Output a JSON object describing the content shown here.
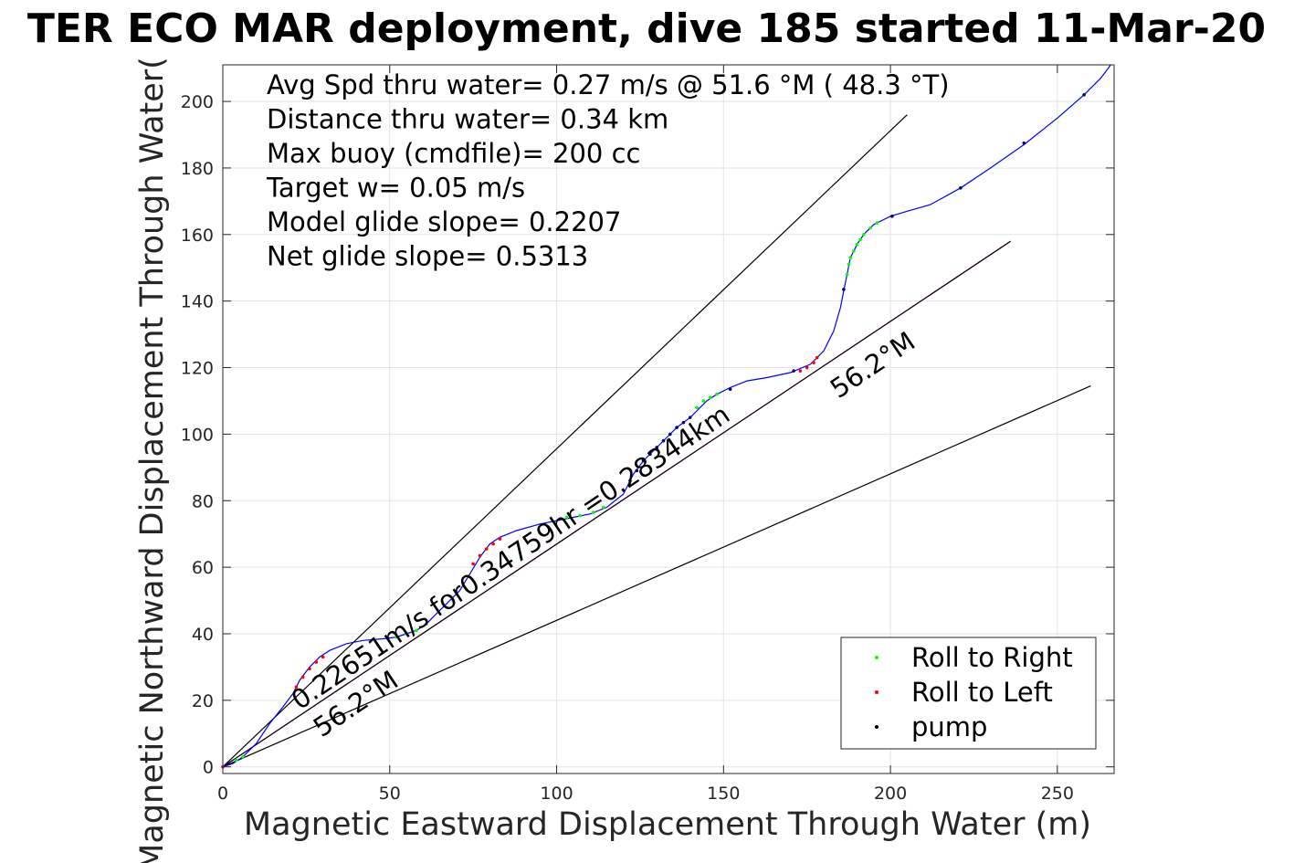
{
  "chart_data": {
    "type": "scatter",
    "title": "TER ECO MAR deployment, dive 185 started 11-Mar-20",
    "xlabel": "Magnetic Eastward Displacement Through Water (m)",
    "ylabel": "Magnetic Northward Displacement Through Water(",
    "xlim": [
      0,
      267
    ],
    "ylim": [
      -2,
      211
    ],
    "xticks": [
      0,
      50,
      100,
      150,
      200,
      250
    ],
    "yticks": [
      0,
      20,
      40,
      60,
      80,
      100,
      120,
      140,
      160,
      180,
      200
    ],
    "grid": true,
    "info_lines": [
      "Avg Spd thru water=  0.27 m/s @  51.6 °M ( 48.3 °T)",
      "Distance thru water=  0.34 km",
      "Max buoy (cmdfile)= 200 cc",
      "Target w= 0.05 m/s",
      "Model glide slope= 0.2207",
      "Net glide slope= 0.5313"
    ],
    "annotations": {
      "heading_upper": "56.2°M",
      "heading_lower": "56.2°M",
      "speed_text": "0.22651m/s for0.34759hr =0.28344km"
    },
    "legend": {
      "position": "bottom-right",
      "entries": [
        {
          "label": "Roll to Right",
          "color": "#00ff00"
        },
        {
          "label": "Roll to Left",
          "color": "#ff0000"
        },
        {
          "label": "pump",
          "color": "#000000"
        }
      ]
    },
    "track": {
      "name": "",
      "color": "#0000ff",
      "points": [
        [
          0,
          0
        ],
        [
          3,
          1
        ],
        [
          6,
          3
        ],
        [
          10,
          7
        ],
        [
          14,
          13
        ],
        [
          18,
          18
        ],
        [
          21,
          22
        ],
        [
          23,
          26
        ],
        [
          26,
          30
        ],
        [
          29,
          33
        ],
        [
          32,
          35
        ],
        [
          37,
          37
        ],
        [
          42,
          38
        ],
        [
          48,
          38.5
        ],
        [
          52,
          39
        ],
        [
          55,
          40
        ],
        [
          58,
          41
        ],
        [
          61,
          43
        ],
        [
          64,
          46
        ],
        [
          68,
          50
        ],
        [
          71,
          53
        ],
        [
          74,
          58
        ],
        [
          77,
          63
        ],
        [
          80,
          67
        ],
        [
          83,
          69
        ],
        [
          88,
          71
        ],
        [
          95,
          73
        ],
        [
          100,
          74
        ],
        [
          105,
          75
        ],
        [
          110,
          76
        ],
        [
          115,
          78
        ],
        [
          120,
          82
        ],
        [
          123,
          88
        ],
        [
          126,
          92
        ],
        [
          130,
          96
        ],
        [
          133,
          99
        ],
        [
          136,
          102
        ],
        [
          140,
          105
        ],
        [
          143,
          108
        ],
        [
          145,
          110
        ],
        [
          148,
          112
        ],
        [
          152,
          114
        ],
        [
          157,
          116
        ],
        [
          163,
          117
        ],
        [
          170,
          118.5
        ],
        [
          176,
          121
        ],
        [
          180,
          125
        ],
        [
          183,
          131
        ],
        [
          185,
          138
        ],
        [
          186,
          143
        ],
        [
          187,
          148
        ],
        [
          188,
          153
        ],
        [
          190,
          157
        ],
        [
          192,
          160
        ],
        [
          195,
          163
        ],
        [
          200,
          165.5
        ],
        [
          205,
          167
        ],
        [
          212,
          169
        ],
        [
          221,
          174
        ],
        [
          230,
          180
        ],
        [
          240,
          187
        ],
        [
          250,
          195
        ],
        [
          258,
          202
        ],
        [
          263,
          207
        ],
        [
          266,
          211
        ]
      ]
    },
    "roll_right_points": [
      [
        4,
        2
      ],
      [
        6,
        3
      ],
      [
        52,
        39
      ],
      [
        55,
        40
      ],
      [
        58,
        41
      ],
      [
        61,
        43
      ],
      [
        103,
        75
      ],
      [
        107,
        75.5
      ],
      [
        111,
        76.5
      ],
      [
        114,
        78
      ],
      [
        142,
        108
      ],
      [
        144,
        110
      ],
      [
        146,
        111
      ],
      [
        148,
        112
      ],
      [
        187,
        148
      ],
      [
        187.5,
        151
      ],
      [
        188,
        153
      ],
      [
        189,
        155
      ],
      [
        190,
        157
      ],
      [
        191,
        158.5
      ],
      [
        192,
        160
      ],
      [
        194,
        162
      ],
      [
        196,
        163.5
      ]
    ],
    "roll_left_points": [
      [
        0,
        0
      ],
      [
        22,
        24
      ],
      [
        24,
        27
      ],
      [
        26,
        29.5
      ],
      [
        28,
        31.5
      ],
      [
        30,
        33
      ],
      [
        75,
        61
      ],
      [
        77,
        63.5
      ],
      [
        79,
        65.5
      ],
      [
        81,
        67
      ],
      [
        83,
        68.5
      ],
      [
        173,
        119
      ],
      [
        175,
        120
      ],
      [
        177,
        121.5
      ],
      [
        178,
        123
      ]
    ],
    "pump_points": [
      [
        171,
        119
      ],
      [
        186,
        143.5
      ],
      [
        200.5,
        165.5
      ],
      [
        221,
        174
      ],
      [
        240,
        187.5
      ],
      [
        258,
        202
      ],
      [
        152,
        113.5
      ],
      [
        122,
        86
      ],
      [
        124,
        89
      ],
      [
        126,
        92
      ],
      [
        128,
        94
      ],
      [
        130,
        96
      ],
      [
        132,
        98
      ],
      [
        134,
        100
      ],
      [
        136,
        102
      ],
      [
        138,
        103.5
      ],
      [
        140,
        105
      ]
    ],
    "reference_lines": [
      {
        "from": [
          0,
          0
        ],
        "to": [
          205,
          196
        ],
        "color": "#000000"
      },
      {
        "from": [
          0,
          0
        ],
        "to": [
          260,
          114.5
        ],
        "color": "#000000"
      },
      {
        "from": [
          0,
          0
        ],
        "to": [
          236,
          158
        ],
        "color": "#ff00ff"
      },
      {
        "from": [
          0,
          0
        ],
        "to": [
          236,
          158
        ],
        "color": "#000000"
      }
    ]
  }
}
